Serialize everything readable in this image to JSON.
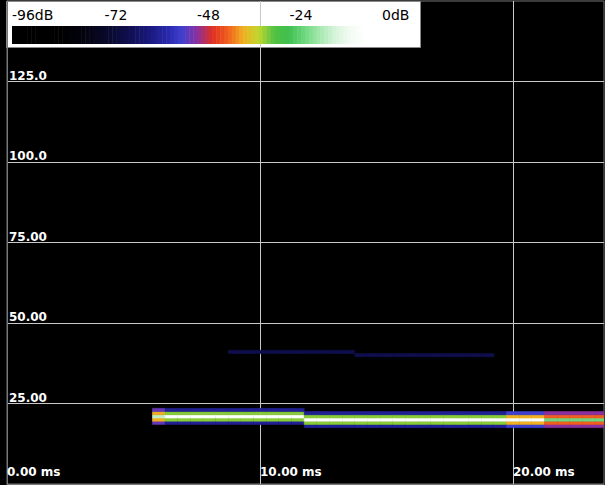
{
  "chart_data": {
    "type": "heatmap",
    "xlim": [
      0,
      23.6
    ],
    "xticks": [
      {
        "value": 0,
        "label": "0.00 ms"
      },
      {
        "value": 10,
        "label": "10.00 ms"
      },
      {
        "value": 20,
        "label": "20.00 ms"
      }
    ],
    "ylim": [
      0,
      150
    ],
    "yticks": [
      {
        "value": 25,
        "label": "25.00"
      },
      {
        "value": 50,
        "label": "50.00"
      },
      {
        "value": 75,
        "label": "75.00"
      },
      {
        "value": 100,
        "label": "100.0"
      },
      {
        "value": 125,
        "label": "125.0"
      }
    ],
    "grid": true,
    "colorbar_range": [
      -96,
      0
    ],
    "colorbar_ticks": [
      {
        "value": -96,
        "label": "-96dB"
      },
      -72,
      -48,
      -24,
      {
        "value": 0,
        "label": "0dB"
      }
    ],
    "cells": [
      [
        6,
        19,
        -50
      ],
      [
        6,
        20,
        -36
      ],
      [
        6,
        21,
        -14
      ],
      [
        6,
        22,
        -36
      ],
      [
        6,
        23,
        -50
      ],
      [
        6.5,
        19,
        -58
      ],
      [
        6.5,
        20,
        -30
      ],
      [
        6.5,
        21,
        -3
      ],
      [
        6.5,
        22,
        -30
      ],
      [
        6.5,
        23,
        -58
      ],
      [
        7,
        19,
        -58
      ],
      [
        7,
        20,
        -30
      ],
      [
        7,
        21,
        -3
      ],
      [
        7,
        22,
        -30
      ],
      [
        7,
        23,
        -58
      ],
      [
        7.5,
        19,
        -58
      ],
      [
        7.5,
        20,
        -30
      ],
      [
        7.5,
        21,
        -3
      ],
      [
        7.5,
        22,
        -30
      ],
      [
        7.5,
        23,
        -58
      ],
      [
        8,
        19,
        -58
      ],
      [
        8,
        20,
        -30
      ],
      [
        8,
        21,
        -3
      ],
      [
        8,
        22,
        -30
      ],
      [
        8,
        23,
        -58
      ],
      [
        8.5,
        19,
        -58
      ],
      [
        8.5,
        20,
        -30
      ],
      [
        8.5,
        21,
        -3
      ],
      [
        8.5,
        22,
        -30
      ],
      [
        8.5,
        23,
        -58
      ],
      [
        9,
        19,
        -58
      ],
      [
        9,
        20,
        -30
      ],
      [
        9,
        21,
        -3
      ],
      [
        9,
        22,
        -30
      ],
      [
        9,
        23,
        -58
      ],
      [
        9.5,
        19,
        -58
      ],
      [
        9.5,
        20,
        -30
      ],
      [
        9.5,
        21,
        -3
      ],
      [
        9.5,
        22,
        -30
      ],
      [
        9.5,
        23,
        -58
      ],
      [
        10,
        19,
        -58
      ],
      [
        10,
        20,
        -30
      ],
      [
        10,
        21,
        -3
      ],
      [
        10,
        22,
        -30
      ],
      [
        10,
        23,
        -58
      ],
      [
        10.5,
        19,
        -58
      ],
      [
        10.5,
        20,
        -30
      ],
      [
        10.5,
        21,
        -3
      ],
      [
        10.5,
        22,
        -30
      ],
      [
        10.5,
        23,
        -58
      ],
      [
        11,
        19,
        -58
      ],
      [
        11,
        20,
        -30
      ],
      [
        11,
        21,
        -3
      ],
      [
        11,
        22,
        -30
      ],
      [
        11,
        23,
        -58
      ],
      [
        11.5,
        19,
        -58
      ],
      [
        11.5,
        20,
        -30
      ],
      [
        11.5,
        21,
        -3
      ],
      [
        11.5,
        22,
        -30
      ],
      [
        11.5,
        23,
        -58
      ],
      [
        12,
        18,
        -58
      ],
      [
        12,
        19,
        -30
      ],
      [
        12,
        20,
        -3
      ],
      [
        12,
        21,
        -30
      ],
      [
        12,
        22,
        -58
      ],
      [
        12.5,
        18,
        -58
      ],
      [
        12.5,
        19,
        -30
      ],
      [
        12.5,
        20,
        -3
      ],
      [
        12.5,
        21,
        -30
      ],
      [
        12.5,
        22,
        -58
      ],
      [
        13,
        18,
        -58
      ],
      [
        13,
        19,
        -30
      ],
      [
        13,
        20,
        -3
      ],
      [
        13,
        21,
        -30
      ],
      [
        13,
        22,
        -58
      ],
      [
        13.5,
        18,
        -58
      ],
      [
        13.5,
        19,
        -30
      ],
      [
        13.5,
        20,
        -3
      ],
      [
        13.5,
        21,
        -30
      ],
      [
        13.5,
        22,
        -58
      ],
      [
        14,
        18,
        -58
      ],
      [
        14,
        19,
        -30
      ],
      [
        14,
        20,
        -3
      ],
      [
        14,
        21,
        -30
      ],
      [
        14,
        22,
        -58
      ],
      [
        14.5,
        18,
        -58
      ],
      [
        14.5,
        19,
        -30
      ],
      [
        14.5,
        20,
        -3
      ],
      [
        14.5,
        21,
        -30
      ],
      [
        14.5,
        22,
        -58
      ],
      [
        15,
        18,
        -58
      ],
      [
        15,
        19,
        -30
      ],
      [
        15,
        20,
        -3
      ],
      [
        15,
        21,
        -30
      ],
      [
        15,
        22,
        -58
      ],
      [
        15.5,
        18,
        -58
      ],
      [
        15.5,
        19,
        -30
      ],
      [
        15.5,
        20,
        -3
      ],
      [
        15.5,
        21,
        -30
      ],
      [
        15.5,
        22,
        -58
      ],
      [
        16,
        18,
        -58
      ],
      [
        16,
        19,
        -30
      ],
      [
        16,
        20,
        -3
      ],
      [
        16,
        21,
        -30
      ],
      [
        16,
        22,
        -58
      ],
      [
        16.5,
        18,
        -58
      ],
      [
        16.5,
        19,
        -30
      ],
      [
        16.5,
        20,
        -3
      ],
      [
        16.5,
        21,
        -30
      ],
      [
        16.5,
        22,
        -58
      ],
      [
        17,
        18,
        -58
      ],
      [
        17,
        19,
        -30
      ],
      [
        17,
        20,
        -3
      ],
      [
        17,
        21,
        -30
      ],
      [
        17,
        22,
        -58
      ],
      [
        17.5,
        18,
        -58
      ],
      [
        17.5,
        19,
        -30
      ],
      [
        17.5,
        20,
        -3
      ],
      [
        17.5,
        21,
        -30
      ],
      [
        17.5,
        22,
        -58
      ],
      [
        18,
        18,
        -58
      ],
      [
        18,
        19,
        -30
      ],
      [
        18,
        20,
        -3
      ],
      [
        18,
        21,
        -30
      ],
      [
        18,
        22,
        -58
      ],
      [
        18.5,
        18,
        -58
      ],
      [
        18.5,
        19,
        -30
      ],
      [
        18.5,
        20,
        -3
      ],
      [
        18.5,
        21,
        -30
      ],
      [
        18.5,
        22,
        -58
      ],
      [
        19,
        18,
        -58
      ],
      [
        19,
        19,
        -30
      ],
      [
        19,
        20,
        -3
      ],
      [
        19,
        21,
        -30
      ],
      [
        19,
        22,
        -58
      ],
      [
        19.5,
        18,
        -58
      ],
      [
        19.5,
        19,
        -30
      ],
      [
        19.5,
        20,
        -3
      ],
      [
        19.5,
        21,
        -30
      ],
      [
        19.5,
        22,
        -58
      ],
      [
        20,
        18,
        -52
      ],
      [
        20,
        19,
        -36
      ],
      [
        20,
        20,
        -6
      ],
      [
        20,
        21,
        -36
      ],
      [
        20,
        22,
        -52
      ],
      [
        20.5,
        18,
        -52
      ],
      [
        20.5,
        19,
        -36
      ],
      [
        20.5,
        20,
        -6
      ],
      [
        20.5,
        21,
        -36
      ],
      [
        20.5,
        22,
        -52
      ],
      [
        21,
        18,
        -52
      ],
      [
        21,
        19,
        -36
      ],
      [
        21,
        20,
        -6
      ],
      [
        21,
        21,
        -36
      ],
      [
        21,
        22,
        -52
      ],
      [
        21.5,
        18,
        -48
      ],
      [
        21.5,
        19,
        -40
      ],
      [
        21.5,
        20,
        -20
      ],
      [
        21.5,
        21,
        -40
      ],
      [
        21.5,
        22,
        -48
      ],
      [
        22,
        18,
        -48
      ],
      [
        22,
        19,
        -40
      ],
      [
        22,
        20,
        -20
      ],
      [
        22,
        21,
        -40
      ],
      [
        22,
        22,
        -48
      ],
      [
        22.5,
        18,
        -48
      ],
      [
        22.5,
        19,
        -40
      ],
      [
        22.5,
        20,
        -20
      ],
      [
        22.5,
        21,
        -40
      ],
      [
        22.5,
        22,
        -48
      ],
      [
        23,
        18,
        -48
      ],
      [
        23,
        19,
        -40
      ],
      [
        23,
        20,
        -20
      ],
      [
        23,
        21,
        -40
      ],
      [
        23,
        22,
        -48
      ],
      [
        23.5,
        18,
        -48
      ],
      [
        23.5,
        19,
        -40
      ],
      [
        23.5,
        20,
        -20
      ],
      [
        23.5,
        21,
        -40
      ],
      [
        23.5,
        22,
        -48
      ],
      [
        9,
        41,
        -66
      ],
      [
        9.5,
        41,
        -66
      ],
      [
        10,
        41,
        -66
      ],
      [
        10.5,
        41,
        -66
      ],
      [
        11,
        41,
        -66
      ],
      [
        11.5,
        41,
        -66
      ],
      [
        12,
        41,
        -66
      ],
      [
        12.5,
        41,
        -66
      ],
      [
        13,
        41,
        -66
      ],
      [
        13.5,
        41,
        -66
      ],
      [
        14,
        40,
        -66
      ],
      [
        14.5,
        40,
        -66
      ],
      [
        15,
        40,
        -66
      ],
      [
        15.5,
        40,
        -66
      ],
      [
        16,
        40,
        -66
      ],
      [
        16.5,
        40,
        -66
      ],
      [
        17,
        40,
        -66
      ],
      [
        17.5,
        40,
        -66
      ],
      [
        18,
        40,
        -66
      ],
      [
        18.5,
        40,
        -66
      ],
      [
        19,
        40,
        -66
      ]
    ]
  }
}
